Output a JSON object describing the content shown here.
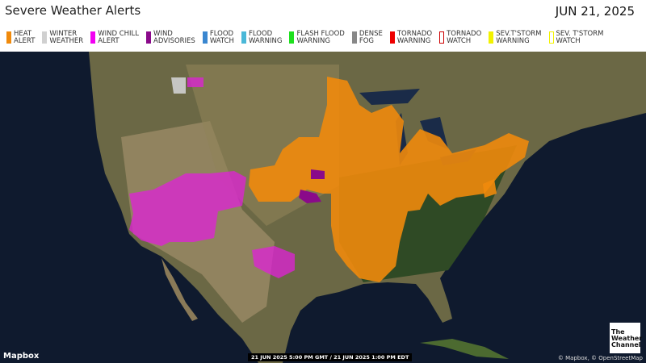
{
  "header": {
    "title": "Severe Weather Alerts",
    "date": "JUN 21, 2025"
  },
  "legend": [
    {
      "label": "HEAT\nALERT",
      "color": "#f08a0c",
      "outline": false
    },
    {
      "label": "WINTER\nWEATHER",
      "color": "#d0d0d0",
      "outline": false
    },
    {
      "label": "WIND CHILL\nALERT",
      "color": "#f200f2",
      "outline": false
    },
    {
      "label": "WIND\nADVISORIES",
      "color": "#8a0a8a",
      "outline": false
    },
    {
      "label": "FLOOD\nWATCH",
      "color": "#3a87d0",
      "outline": false
    },
    {
      "label": "FLOOD\nWARNING",
      "color": "#4ab8d8",
      "outline": false
    },
    {
      "label": "FLASH FLOOD\nWARNING",
      "color": "#1ee01e",
      "outline": false
    },
    {
      "label": "DENSE\nFOG",
      "color": "#888888",
      "outline": false
    },
    {
      "label": "TORNADO\nWARNING",
      "color": "#ee0000",
      "outline": false
    },
    {
      "label": "TORNADO\nWATCH",
      "color": "#cc0000",
      "outline": true
    },
    {
      "label": "SEV.T'STORM\nWARNING",
      "color": "#f2f200",
      "outline": false
    },
    {
      "label": "SEV. T'STORM\nWATCH",
      "color": "#f2f200",
      "outline": true
    }
  ],
  "map": {
    "provider": "Mapbox",
    "timestamp": "21 JUN 2025 5:00 PM GMT / 21 JUN 2025 1:00 PM EDT",
    "attribution": "© Mapbox, © OpenStreetMap",
    "logo": "The Weather Channel"
  }
}
